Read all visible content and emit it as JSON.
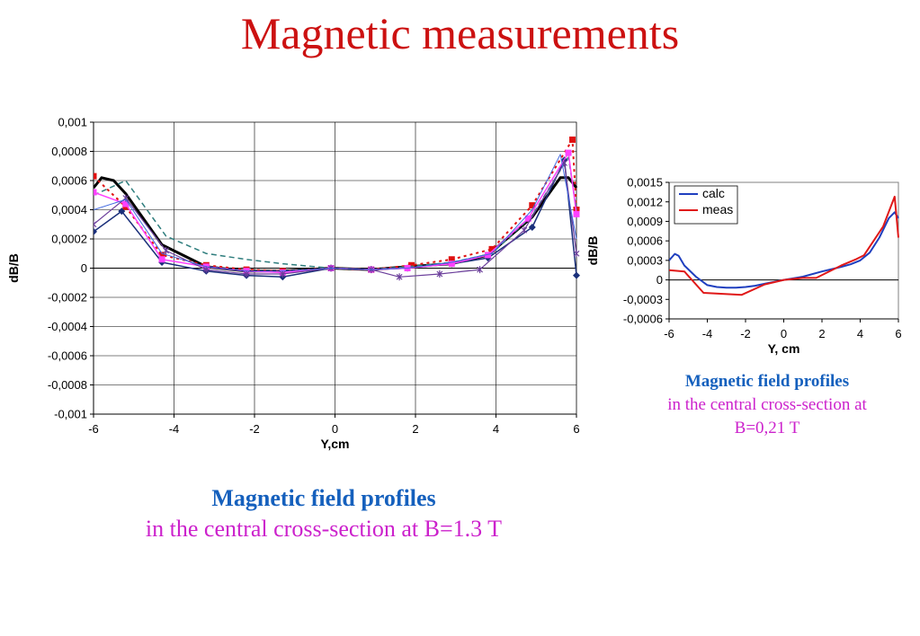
{
  "title": "Magnetic measurements",
  "captions": {
    "main": {
      "line1": "Magnetic field profiles",
      "line2": "in the central cross-section at B=1.3 T"
    },
    "side": {
      "line1": "Magnetic field profiles",
      "line2": "in the central cross-section at",
      "line3": "B=0,21 T"
    }
  },
  "colors": {
    "title": "#cc1111",
    "caption_blue": "#1560bd",
    "caption_magenta": "#cc22cc"
  },
  "chart_data": [
    {
      "type": "line",
      "xlabel": "Y,cm",
      "ylabel": "dB/B",
      "xlim": [
        -6,
        6
      ],
      "ylim": [
        -0.001,
        0.001
      ],
      "xticks": [
        -6,
        -4,
        -2,
        0,
        2,
        4,
        6
      ],
      "xtick_labels": [
        "-6",
        "-4",
        "-2",
        "0",
        "2",
        "4",
        "6"
      ],
      "yticks": [
        0.001,
        0.0008,
        0.0006,
        0.0004,
        0.0002,
        0,
        -0.0002,
        -0.0004,
        -0.0006,
        -0.0008,
        -0.001
      ],
      "ytick_labels": [
        "0,001",
        "0,0008",
        "0,0006",
        "0,0004",
        "0,0002",
        "0",
        "-0,0002",
        "-0,0004",
        "-0,0006",
        "-0,0008",
        "-0,001"
      ],
      "grid": true,
      "series": [
        {
          "color": "#000000",
          "width": 3,
          "dash": "",
          "marker": "none",
          "x": [
            -6,
            -5.8,
            -5.5,
            -5.2,
            -4.3,
            -3.2,
            -2.2,
            -1.3,
            -0.1,
            0.9,
            1.8,
            2.9,
            3.8,
            4.9,
            5.6,
            5.8,
            6
          ],
          "y": [
            0.00055,
            0.00062,
            0.0006,
            0.00051,
            0.00016,
            1e-05,
            -2e-05,
            -2e-05,
            0,
            -1e-05,
            1e-05,
            3e-05,
            9e-05,
            0.00035,
            0.00062,
            0.00062,
            0.00055
          ]
        },
        {
          "color": "#e01010",
          "width": 2,
          "dash": "3,4",
          "marker": "square",
          "x": [
            -6,
            -5.2,
            -4.3,
            -3.2,
            -2.2,
            -1.3,
            -0.1,
            0.9,
            1.9,
            2.9,
            3.9,
            4.9,
            5.9,
            6
          ],
          "y": [
            0.00063,
            0.00042,
            9e-05,
            2e-05,
            -1e-05,
            -2e-05,
            0,
            -1e-05,
            2e-05,
            6e-05,
            0.00013,
            0.00043,
            0.00088,
            0.0004
          ]
        },
        {
          "color": "#1a2f7a",
          "width": 1.5,
          "dash": "",
          "marker": "diamond",
          "x": [
            -6,
            -5.3,
            -4.3,
            -3.2,
            -2.2,
            -1.3,
            -0.1,
            0.9,
            1.8,
            2.9,
            3.8,
            4.9,
            5.7,
            6
          ],
          "y": [
            0.00025,
            0.00039,
            4e-05,
            -2e-05,
            -5e-05,
            -6e-05,
            0,
            -1e-05,
            0,
            3e-05,
            7e-05,
            0.00028,
            0.00074,
            -5e-05
          ]
        },
        {
          "color": "#2e7d7d",
          "width": 1.5,
          "dash": "6,4",
          "marker": "none",
          "x": [
            -6,
            -5.2,
            -4.2,
            -3.2,
            -2.2,
            -1.3,
            -0.1,
            0.9,
            1.8,
            2.9,
            3.9,
            4.9,
            5.8,
            6
          ],
          "y": [
            0.0005,
            0.0006,
            0.00022,
            0.0001,
            6e-05,
            3e-05,
            0,
            -1e-05,
            1e-05,
            4e-05,
            0.0001,
            0.00036,
            0.00076,
            0.0004
          ]
        },
        {
          "color": "#ff40ff",
          "width": 1.5,
          "dash": "",
          "marker": "square",
          "x": [
            -6,
            -5.2,
            -4.3,
            -3.2,
            -2.2,
            -1.3,
            -0.1,
            0.9,
            1.8,
            2.9,
            3.8,
            4.8,
            5.8,
            6
          ],
          "y": [
            0.00052,
            0.00044,
            6e-05,
            1e-05,
            -2e-05,
            -3e-05,
            0,
            -1e-05,
            0,
            3e-05,
            9e-05,
            0.00034,
            0.00079,
            0.00037
          ]
        },
        {
          "color": "#6a3d9a",
          "width": 1.2,
          "dash": "",
          "marker": "star",
          "x": [
            -6,
            -5.2,
            -4.2,
            -3.2,
            -2.2,
            -1.3,
            -0.1,
            0.9,
            1.6,
            2.6,
            3.6,
            4.7,
            5.7,
            6
          ],
          "y": [
            0.0003,
            0.00048,
            0.00012,
            -1e-05,
            -4e-05,
            -4e-05,
            0,
            -1e-05,
            -6e-05,
            -4e-05,
            -1e-05,
            0.00026,
            0.00072,
            0.0001
          ]
        },
        {
          "color": "#4169e1",
          "width": 1,
          "dash": "",
          "marker": "none",
          "x": [
            -6,
            -5.2,
            -4.3,
            -3.2,
            -2.2,
            -1.3,
            -0.1,
            0.9,
            1.8,
            2.9,
            3.9,
            4.9,
            5.6,
            6
          ],
          "y": [
            0.0004,
            0.00047,
            0.0001,
            1e-05,
            -2e-05,
            -2e-05,
            0,
            -1e-05,
            0,
            4e-05,
            0.0001,
            0.0004,
            0.00078,
            0.0002
          ]
        }
      ]
    },
    {
      "type": "line",
      "xlabel": "Y, cm",
      "ylabel": "dB/B",
      "xlim": [
        -6,
        6
      ],
      "ylim": [
        -0.0006,
        0.0015
      ],
      "xticks": [
        -6,
        -4,
        -2,
        0,
        2,
        4,
        6
      ],
      "xtick_labels": [
        "-6",
        "-4",
        "-2",
        "0",
        "2",
        "4",
        "6"
      ],
      "yticks": [
        0.0015,
        0.0012,
        0.0009,
        0.0006,
        0.0003,
        0,
        -0.0003,
        -0.0006
      ],
      "ytick_labels": [
        "0,0015",
        "0,0012",
        "0,0009",
        "0,0006",
        "0,0003",
        "0",
        "-0,0003",
        "-0,0006"
      ],
      "grid": false,
      "legend": "top-left",
      "series": [
        {
          "name": "calc",
          "color": "#1f3fbf",
          "width": 2,
          "dash": "",
          "marker": "none",
          "x": [
            -6,
            -5.7,
            -5.5,
            -5.2,
            -4.6,
            -4,
            -3.5,
            -3,
            -2.5,
            -2,
            -1.5,
            -1,
            0,
            1,
            2,
            3,
            3.5,
            4,
            4.5,
            5,
            5.5,
            5.8,
            6
          ],
          "y": [
            0.0003,
            0.0004,
            0.00037,
            0.00022,
            5e-05,
            -8e-05,
            -0.00011,
            -0.00012,
            -0.00012,
            -0.00011,
            -9e-05,
            -6e-05,
            0,
            5e-05,
            0.00013,
            0.0002,
            0.00024,
            0.0003,
            0.00042,
            0.00065,
            0.00095,
            0.00104,
            0.00095
          ]
        },
        {
          "name": "meas",
          "color": "#e01818",
          "width": 2,
          "dash": "",
          "marker": "none",
          "x": [
            -6,
            -5.2,
            -4.2,
            -2.2,
            -1,
            0,
            1,
            1.7,
            3,
            3.8,
            4.2,
            5.2,
            5.8,
            6
          ],
          "y": [
            0.00015,
            0.00013,
            -0.0002,
            -0.00023,
            -7e-05,
            0,
            3e-05,
            3e-05,
            0.00022,
            0.00032,
            0.00038,
            0.00082,
            0.00128,
            0.00065
          ]
        }
      ]
    }
  ]
}
